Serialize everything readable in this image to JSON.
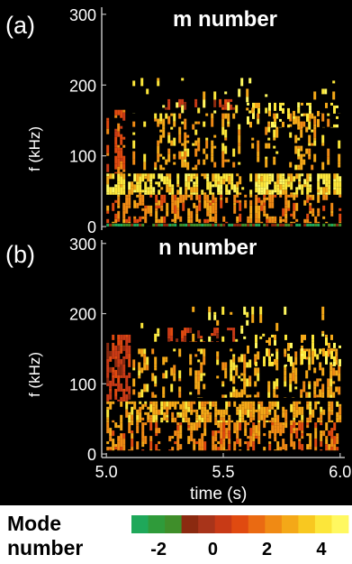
{
  "chart_data": [
    {
      "type": "heatmap",
      "panel_label": "(a)",
      "title": "m number",
      "xlabel": "",
      "ylabel": "f (kHz)",
      "xlim": [
        4.98,
        6.02
      ],
      "ylim": [
        -5,
        310
      ],
      "yticks": [
        0,
        100,
        200,
        300
      ],
      "bands": [
        {
          "t0": 5.0,
          "t1": 6.0,
          "f0": 45,
          "f1": 75,
          "mode": 4,
          "density": 0.75
        },
        {
          "t0": 5.0,
          "t1": 6.0,
          "f0": 5,
          "f1": 45,
          "mode": 2,
          "density": 0.6
        },
        {
          "t0": 5.0,
          "t1": 6.0,
          "f0": 0,
          "f1": 4,
          "mode": -2,
          "density": 0.9
        },
        {
          "t0": 5.0,
          "t1": 5.1,
          "f0": 75,
          "f1": 165,
          "mode": 1,
          "density": 0.7
        },
        {
          "t0": 5.1,
          "t1": 6.0,
          "f0": 80,
          "f1": 160,
          "mode": 3,
          "density": 0.45
        },
        {
          "t0": 5.25,
          "t1": 5.55,
          "f0": 165,
          "f1": 180,
          "mode": 0,
          "density": 0.55
        },
        {
          "t0": 5.6,
          "t1": 6.0,
          "f0": 140,
          "f1": 175,
          "mode": 4,
          "density": 0.45
        },
        {
          "t0": 5.1,
          "t1": 6.0,
          "f0": 160,
          "f1": 210,
          "mode": 4,
          "density": 0.2
        }
      ]
    },
    {
      "type": "heatmap",
      "panel_label": "(b)",
      "title": "n number",
      "xlabel": "time (s)",
      "ylabel": "f (kHz)",
      "xlim": [
        4.98,
        6.02
      ],
      "ylim": [
        -5,
        310
      ],
      "xticks": [
        "5.0",
        "5.5",
        "6.0"
      ],
      "xtick_values": [
        5.0,
        5.5,
        6.0
      ],
      "yticks": [
        0,
        100,
        200,
        300
      ],
      "bands": [
        {
          "t0": 5.0,
          "t1": 6.0,
          "f0": 5,
          "f1": 45,
          "mode": 2,
          "density": 0.65
        },
        {
          "t0": 5.0,
          "t1": 6.0,
          "f0": 45,
          "f1": 75,
          "mode": 3,
          "density": 0.7
        },
        {
          "t0": 5.0,
          "t1": 5.1,
          "f0": 75,
          "f1": 170,
          "mode": 0,
          "density": 0.7
        },
        {
          "t0": 5.1,
          "t1": 6.0,
          "f0": 80,
          "f1": 150,
          "mode": 3,
          "density": 0.45
        },
        {
          "t0": 5.25,
          "t1": 5.55,
          "f0": 160,
          "f1": 180,
          "mode": 0,
          "density": 0.55
        },
        {
          "t0": 5.6,
          "t1": 6.0,
          "f0": 125,
          "f1": 170,
          "mode": 4,
          "density": 0.45
        },
        {
          "t0": 5.1,
          "t1": 6.0,
          "f0": 160,
          "f1": 210,
          "mode": 4,
          "density": 0.2
        }
      ]
    }
  ],
  "colorbar": {
    "label_line1": "Mode",
    "label_line2": "number",
    "min": -3,
    "max": 5,
    "ticks": [
      "-2",
      "0",
      "2",
      "4"
    ],
    "tick_values": [
      -2,
      0,
      2,
      4
    ],
    "colors": [
      "#1fa85a",
      "#2f9b3a",
      "#3f8e2a",
      "#8b2a10",
      "#a8341a",
      "#c83a16",
      "#e04a10",
      "#ea6a12",
      "#f08a14",
      "#f4a818",
      "#f8c820",
      "#fce63a",
      "#fff860"
    ]
  }
}
